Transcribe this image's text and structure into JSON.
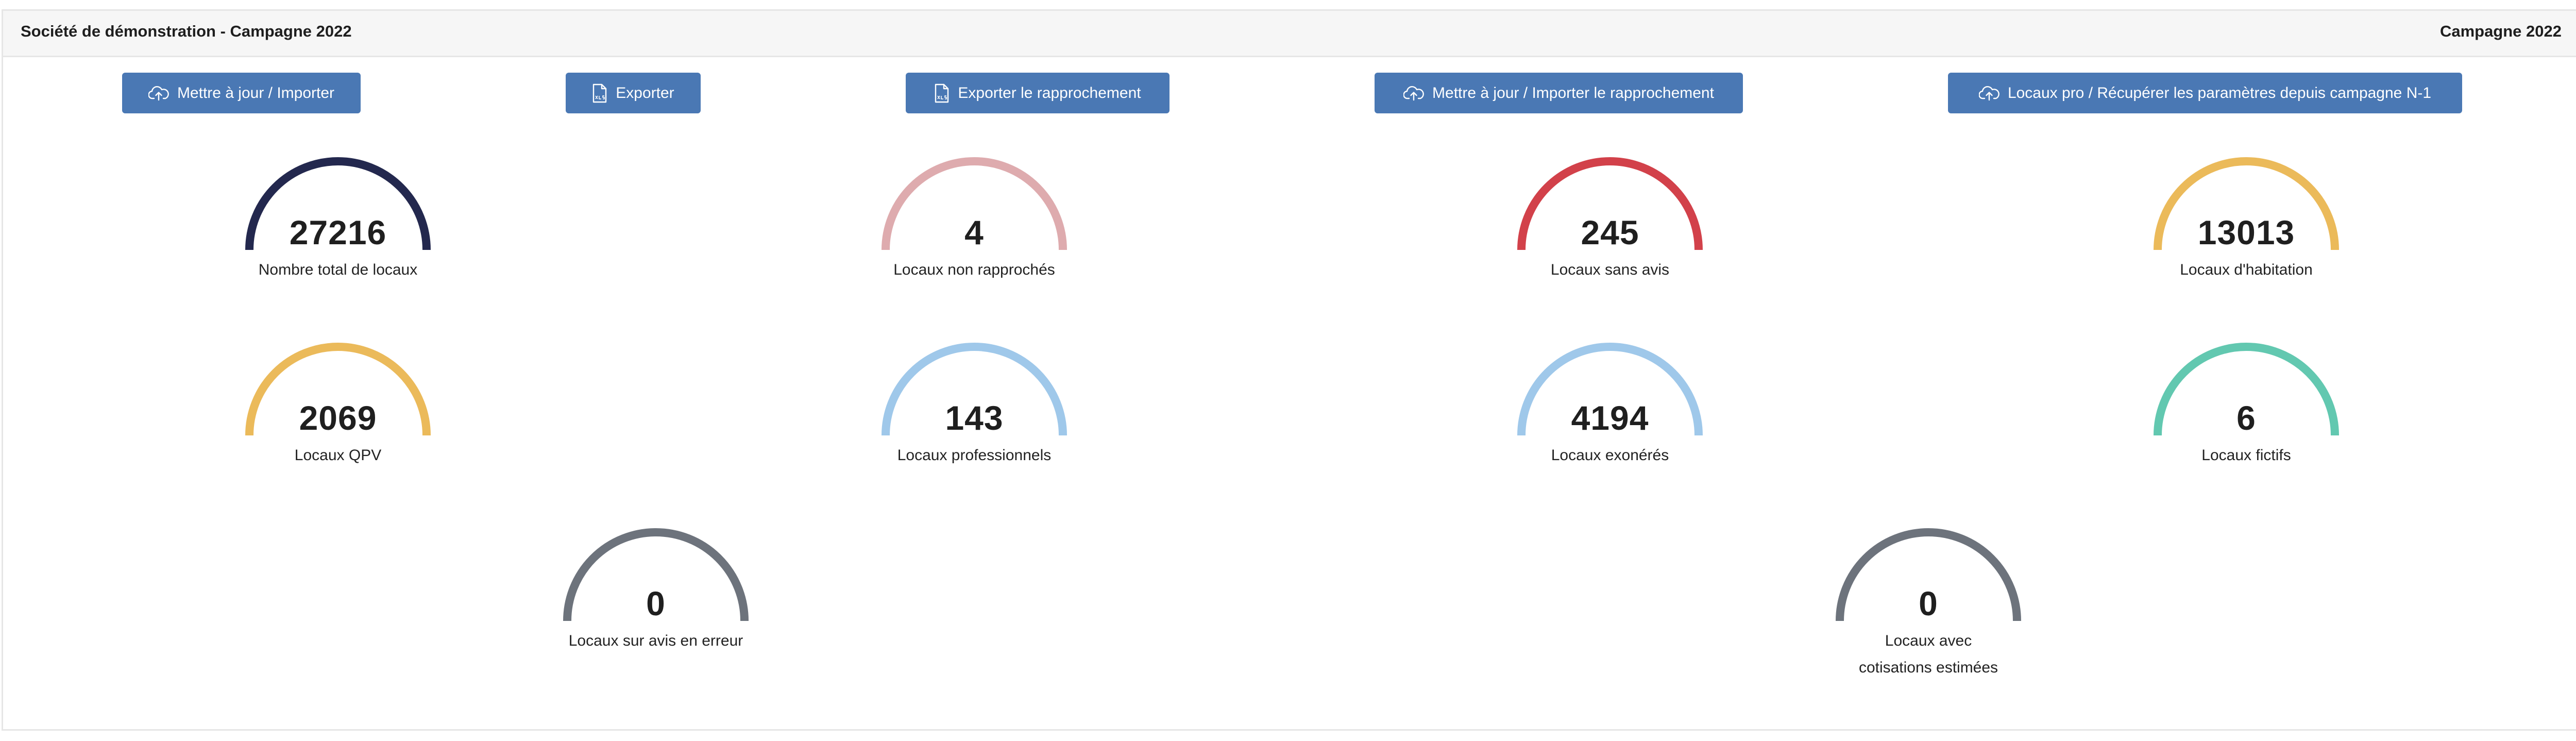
{
  "header": {
    "title": "Société de démonstration - Campagne 2022",
    "campaign": "Campagne 2022"
  },
  "buttons": [
    {
      "label": "Mettre à jour / Importer",
      "icon": "cloud-upload-icon"
    },
    {
      "label": "Exporter",
      "icon": "xls-file-icon"
    },
    {
      "label": "Exporter le rapprochement",
      "icon": "xls-file-icon"
    },
    {
      "label": "Mettre à jour / Importer le rapprochement",
      "icon": "cloud-upload-icon"
    },
    {
      "label": "Locaux pro / Récupérer les paramètres depuis campagne N-1",
      "icon": "cloud-upload-icon"
    }
  ],
  "gauges": [
    {
      "value": "27216",
      "label": "Nombre total de locaux",
      "color": "#23284e"
    },
    {
      "value": "4",
      "label": "Locaux non rapprochés",
      "color": "#deabae"
    },
    {
      "value": "245",
      "label": "Locaux sans avis",
      "color": "#d2414a"
    },
    {
      "value": "13013",
      "label": "Locaux d'habitation",
      "color": "#ebba5a"
    },
    {
      "value": "2069",
      "label": "Locaux QPV",
      "color": "#ebba5a"
    },
    {
      "value": "143",
      "label": "Locaux professionnels",
      "color": "#9fc8ea"
    },
    {
      "value": "4194",
      "label": "Locaux exonérés",
      "color": "#9fc8ea"
    },
    {
      "value": "6",
      "label": "Locaux fictifs",
      "color": "#62c8b0"
    },
    {
      "value": "0",
      "label": "Locaux sur avis en erreur",
      "color": "#6d737c"
    },
    {
      "value": "0",
      "label": "Locaux avec cotisations estimées",
      "color": "#6d737c"
    }
  ]
}
